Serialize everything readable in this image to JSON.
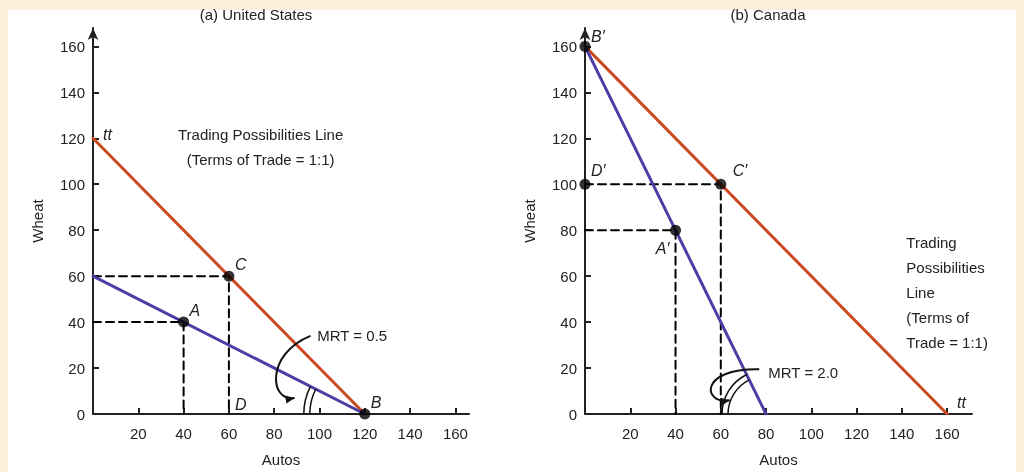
{
  "chart_data": [
    {
      "type": "line",
      "title": "(a) United States",
      "xlabel": "Autos",
      "ylabel": "Wheat",
      "xlim": [
        0,
        166
      ],
      "ylim": [
        0,
        168
      ],
      "xticks": [
        20,
        40,
        60,
        80,
        100,
        120,
        140,
        160
      ],
      "yticks": [
        0,
        20,
        40,
        60,
        80,
        100,
        120,
        140,
        160
      ],
      "marker": "none",
      "series": [
        {
          "color": "#cc4a22",
          "x": [
            0,
            120
          ],
          "values": [
            120,
            0
          ]
        },
        {
          "color": "#4b3fa5",
          "x": [
            0,
            120
          ],
          "values": [
            60,
            0
          ]
        },
        {
          "color": "#000000",
          "line_style": "dashed",
          "x": [
            0,
            40,
            40
          ],
          "values": [
            40,
            40,
            0
          ]
        },
        {
          "color": "#000000",
          "line_style": "dashed",
          "x": [
            0,
            60,
            60
          ],
          "values": [
            60,
            60,
            0
          ]
        },
        {
          "type": "scatter",
          "marker": "circle",
          "color": "#000000",
          "x": [
            40,
            60,
            120
          ],
          "values": [
            40,
            60,
            0
          ]
        }
      ],
      "annotations": [
        {
          "text": "tt",
          "x": 0,
          "y": 120
        },
        {
          "text": "A",
          "x": 40,
          "y": 40
        },
        {
          "text": "C",
          "x": 60,
          "y": 60
        },
        {
          "text": "D",
          "x": 60,
          "y": 0
        },
        {
          "text": "B",
          "x": 120,
          "y": 0
        },
        "Trading Possibilities Line\n(Terms of Trade = 1:1)",
        "MRT = 0.5"
      ]
    },
    {
      "type": "line",
      "title": "(b) Canada",
      "xlabel": "Autos",
      "ylabel": "Wheat",
      "xlim": [
        0,
        171
      ],
      "ylim": [
        0,
        168
      ],
      "xticks": [
        20,
        40,
        60,
        80,
        100,
        120,
        140,
        160
      ],
      "yticks": [
        0,
        20,
        40,
        60,
        80,
        100,
        120,
        140,
        160
      ],
      "marker": "none",
      "series": [
        {
          "color": "#cc4a22",
          "x": [
            0,
            160
          ],
          "values": [
            160,
            0
          ]
        },
        {
          "color": "#4b3fa5",
          "x": [
            0,
            80
          ],
          "values": [
            160,
            0
          ]
        },
        {
          "color": "#000000",
          "line_style": "dashed",
          "x": [
            0,
            40,
            40
          ],
          "values": [
            80,
            80,
            0
          ]
        },
        {
          "color": "#000000",
          "line_style": "dashed",
          "x": [
            0,
            60,
            60
          ],
          "values": [
            100,
            100,
            0
          ]
        },
        {
          "type": "scatter",
          "marker": "circle",
          "color": "#000000",
          "x": [
            0,
            0,
            40,
            60
          ],
          "values": [
            160,
            100,
            80,
            100
          ]
        }
      ],
      "annotations": [
        {
          "text": "B′",
          "x": 0,
          "y": 160
        },
        {
          "text": "D′",
          "x": 0,
          "y": 100
        },
        {
          "text": "A′",
          "x": 40,
          "y": 80
        },
        {
          "text": "C′",
          "x": 60,
          "y": 100
        },
        {
          "text": "tt",
          "x": 160,
          "y": 0
        },
        "Trading\nPossibilities\nLine\n(Terms of\nTrade = 1:1)",
        "MRT = 2.0"
      ]
    }
  ]
}
